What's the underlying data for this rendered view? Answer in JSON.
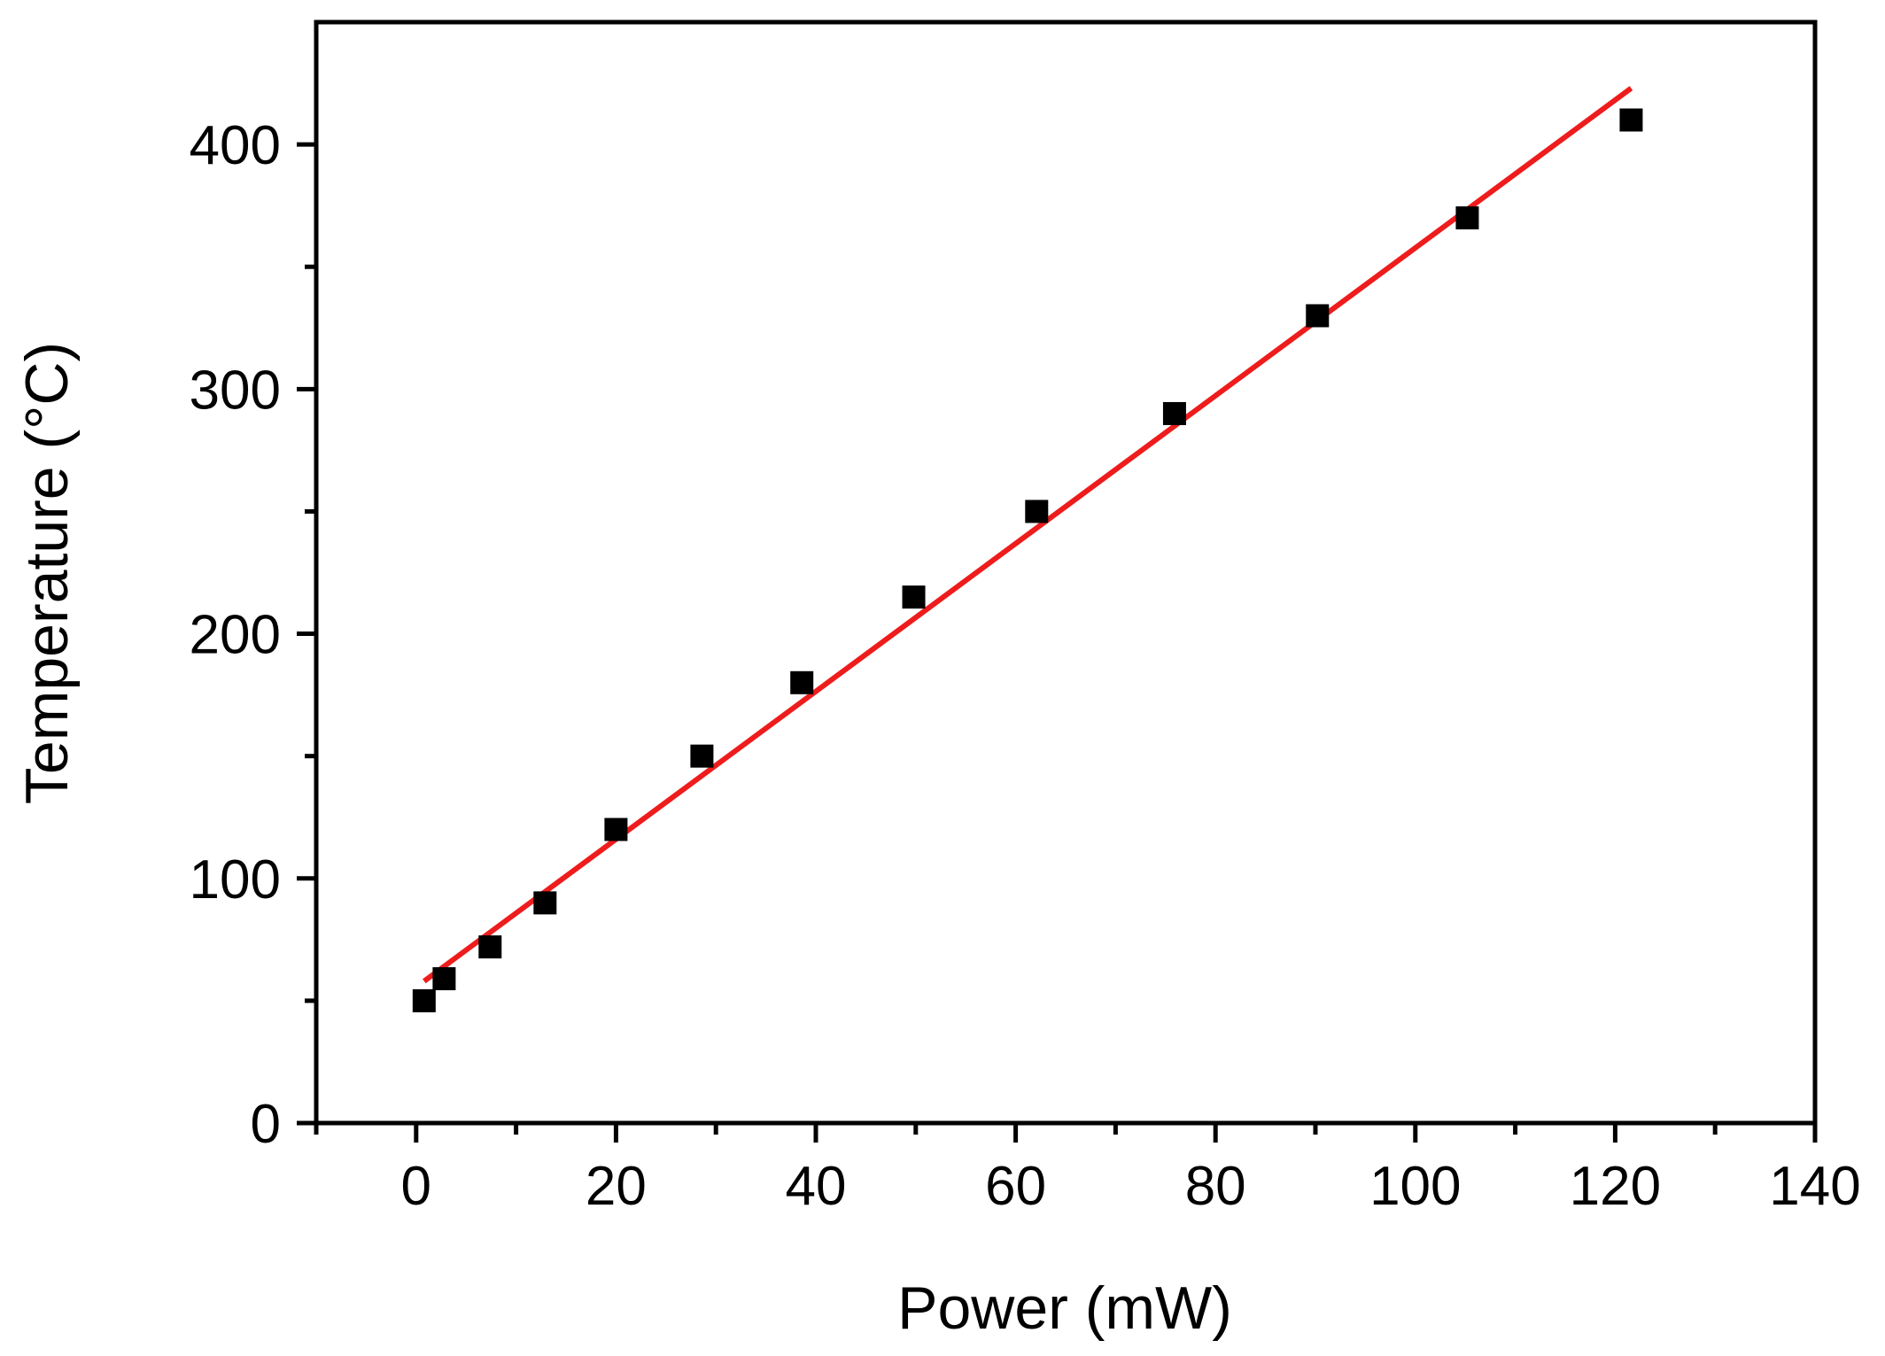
{
  "chart_data": {
    "type": "scatter",
    "xlabel": "Power (mW)",
    "ylabel": "Temperature (°C)",
    "xlim": [
      -10,
      140
    ],
    "ylim": [
      0,
      450
    ],
    "x_ticks": [
      0,
      20,
      40,
      60,
      80,
      100,
      120,
      140
    ],
    "y_ticks": [
      0,
      100,
      200,
      300,
      400
    ],
    "x_minor_step": 10,
    "y_minor_step": 50,
    "grid": false,
    "legend": "none",
    "series": [
      {
        "type": "scatter",
        "marker": "square",
        "color": "#000000",
        "points": [
          [
            0.8,
            50
          ],
          [
            2.8,
            59
          ],
          [
            7.4,
            72
          ],
          [
            12.9,
            90
          ],
          [
            20.0,
            120
          ],
          [
            28.6,
            150
          ],
          [
            38.6,
            180
          ],
          [
            49.8,
            215
          ],
          [
            62.1,
            250
          ],
          [
            75.9,
            290
          ],
          [
            90.2,
            330
          ],
          [
            105.2,
            370
          ],
          [
            121.6,
            410
          ]
        ]
      },
      {
        "type": "line",
        "color": "#ee1c1c",
        "points": [
          [
            0.8,
            58
          ],
          [
            121.6,
            423
          ]
        ]
      }
    ]
  }
}
